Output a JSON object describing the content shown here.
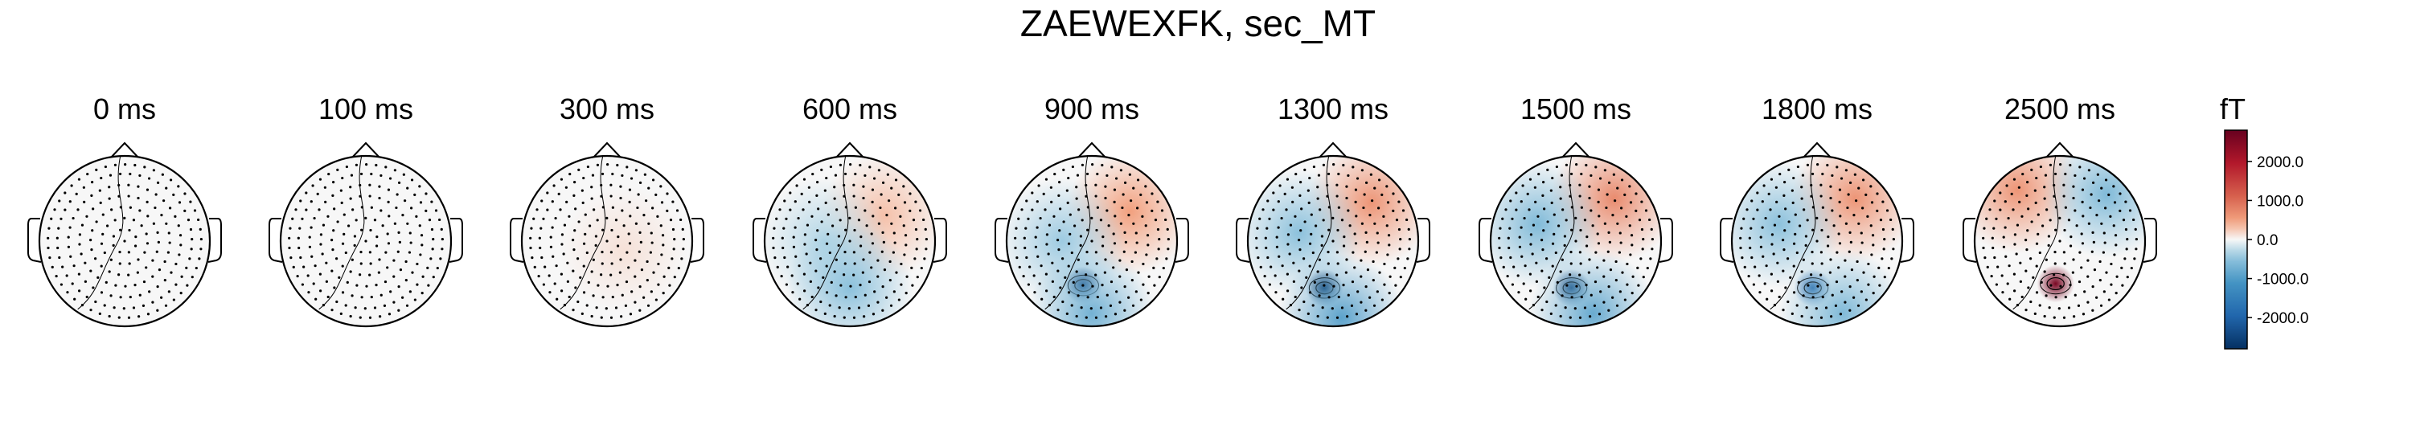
{
  "title": "ZAEWEXFK, sec_MT",
  "chart_data": {
    "type": "heatmap",
    "subtype": "topomap",
    "title": "ZAEWEXFK, sec_MT",
    "time_unit": "ms",
    "panels": [
      {
        "time": 0,
        "label": "0 ms",
        "blobs": []
      },
      {
        "time": 100,
        "label": "100 ms",
        "blobs": []
      },
      {
        "time": 300,
        "label": "300 ms",
        "blobs": [
          {
            "x": 0.2,
            "y": -0.1,
            "value": 120
          }
        ]
      },
      {
        "time": 600,
        "label": "600 ms",
        "blobs": [
          {
            "x": 0.4,
            "y": 0.3,
            "value": 300
          },
          {
            "x": -0.3,
            "y": 0.0,
            "value": -300
          },
          {
            "x": 0.0,
            "y": -0.55,
            "value": -500
          }
        ]
      },
      {
        "time": 900,
        "label": "900 ms",
        "blobs": [
          {
            "x": 0.45,
            "y": 0.35,
            "value": 500
          },
          {
            "x": -0.35,
            "y": 0.0,
            "value": -400
          },
          {
            "x": -0.1,
            "y": -0.52,
            "value": -2500
          },
          {
            "x": 0.0,
            "y": -0.85,
            "value": -700
          }
        ]
      },
      {
        "time": 1300,
        "label": "1300 ms",
        "blobs": [
          {
            "x": 0.45,
            "y": 0.45,
            "value": 600
          },
          {
            "x": -0.4,
            "y": 0.1,
            "value": -500
          },
          {
            "x": -0.1,
            "y": -0.55,
            "value": -2800
          },
          {
            "x": 0.1,
            "y": -0.9,
            "value": -900
          }
        ]
      },
      {
        "time": 1500,
        "label": "1500 ms",
        "blobs": [
          {
            "x": 0.45,
            "y": 0.5,
            "value": 700
          },
          {
            "x": -0.45,
            "y": 0.2,
            "value": -600
          },
          {
            "x": -0.05,
            "y": -0.55,
            "value": -2600
          },
          {
            "x": 0.2,
            "y": -0.85,
            "value": -800
          }
        ]
      },
      {
        "time": 1800,
        "label": "1800 ms",
        "blobs": [
          {
            "x": 0.45,
            "y": 0.5,
            "value": 600
          },
          {
            "x": -0.45,
            "y": 0.2,
            "value": -500
          },
          {
            "x": -0.05,
            "y": -0.55,
            "value": -2000
          },
          {
            "x": 0.3,
            "y": -0.85,
            "value": -600
          }
        ]
      },
      {
        "time": 2500,
        "label": "2500 ms",
        "blobs": [
          {
            "x": -0.5,
            "y": 0.6,
            "value": 600
          },
          {
            "x": 0.55,
            "y": 0.55,
            "value": -600
          },
          {
            "x": -0.05,
            "y": -0.5,
            "value": 2600
          }
        ]
      }
    ],
    "colorbar": {
      "label": "fT",
      "colormap": "RdBu_r",
      "vmin": -2800,
      "vmax": 2800,
      "ticks": [
        2000.0,
        1000.0,
        0.0,
        -1000.0,
        -2000.0
      ],
      "tick_labels": [
        "2000.0",
        "1000.0",
        "0.0",
        "-1000.0",
        "-2000.0"
      ]
    },
    "colors": {
      "positive": "#67001f",
      "neutral": "#f7f7f7",
      "negative": "#053061",
      "outline": "#000000"
    }
  }
}
